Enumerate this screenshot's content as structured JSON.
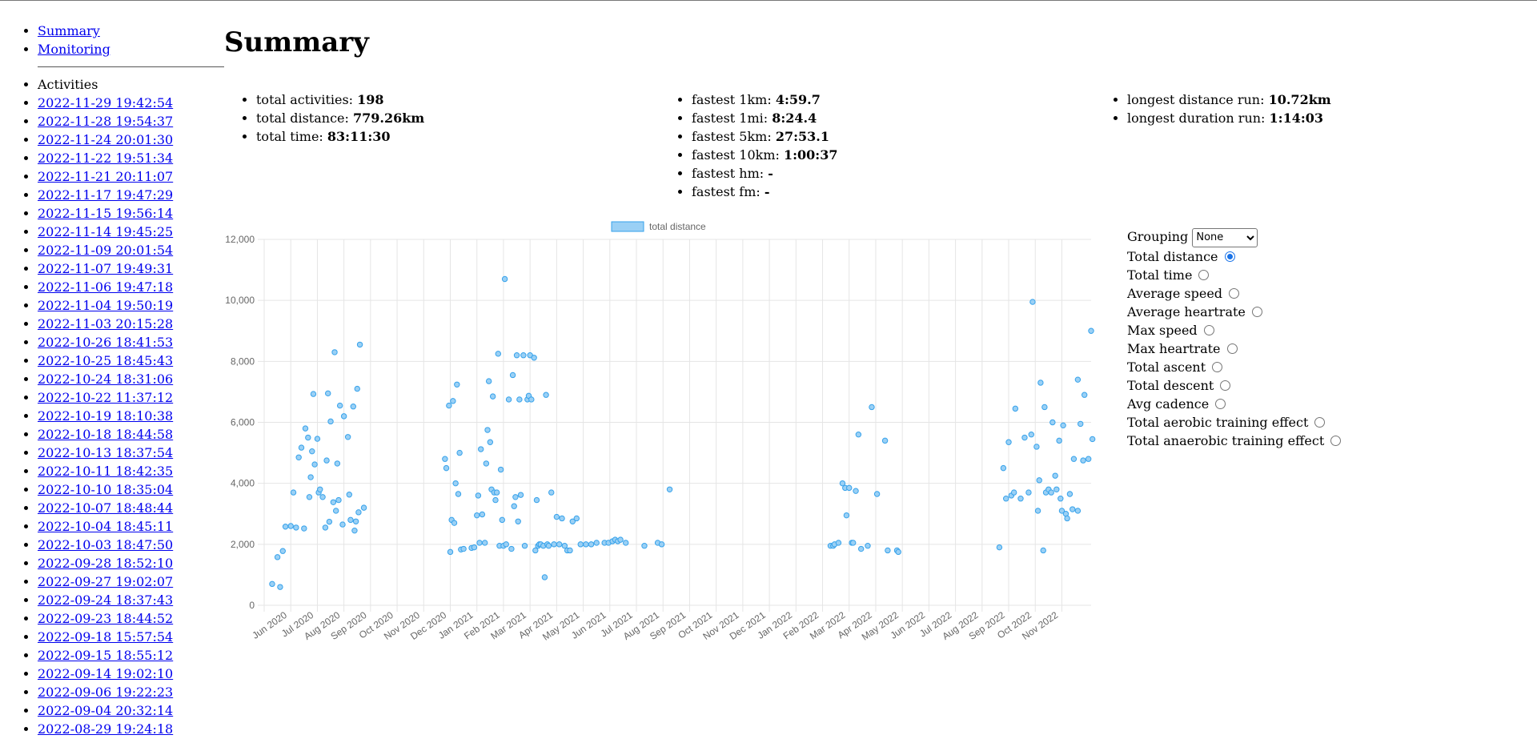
{
  "nav": {
    "summary": "Summary",
    "monitoring": "Monitoring"
  },
  "activities": {
    "heading": "Activities",
    "items": [
      "2022-11-29 19:42:54",
      "2022-11-28 19:54:37",
      "2022-11-24 20:01:30",
      "2022-11-22 19:51:34",
      "2022-11-21 20:11:07",
      "2022-11-17 19:47:29",
      "2022-11-15 19:56:14",
      "2022-11-14 19:45:25",
      "2022-11-09 20:01:54",
      "2022-11-07 19:49:31",
      "2022-11-06 19:47:18",
      "2022-11-04 19:50:19",
      "2022-11-03 20:15:28",
      "2022-10-26 18:41:53",
      "2022-10-25 18:45:43",
      "2022-10-24 18:31:06",
      "2022-10-22 11:37:12",
      "2022-10-19 18:10:38",
      "2022-10-18 18:44:58",
      "2022-10-13 18:37:54",
      "2022-10-11 18:42:35",
      "2022-10-10 18:35:04",
      "2022-10-07 18:48:44",
      "2022-10-04 18:45:11",
      "2022-10-03 18:47:50",
      "2022-09-28 18:52:10",
      "2022-09-27 19:02:07",
      "2022-09-24 18:37:43",
      "2022-09-23 18:44:52",
      "2022-09-18 15:57:54",
      "2022-09-15 18:55:12",
      "2022-09-14 19:02:10",
      "2022-09-06 19:22:23",
      "2022-09-04 20:32:14",
      "2022-08-29 19:24:18"
    ]
  },
  "page": {
    "title": "Summary"
  },
  "stats": {
    "col1": [
      {
        "label": "total activities: ",
        "value": "198"
      },
      {
        "label": "total distance: ",
        "value": "779.26km"
      },
      {
        "label": "total time: ",
        "value": "83:11:30"
      }
    ],
    "col2": [
      {
        "label": "fastest 1km: ",
        "value": "4:59.7"
      },
      {
        "label": "fastest 1mi: ",
        "value": "8:24.4"
      },
      {
        "label": "fastest 5km: ",
        "value": "27:53.1"
      },
      {
        "label": "fastest 10km: ",
        "value": "1:00:37"
      },
      {
        "label": "fastest hm: ",
        "value": "-"
      },
      {
        "label": "fastest fm: ",
        "value": "-"
      }
    ],
    "col3": [
      {
        "label": "longest distance run: ",
        "value": "10.72km"
      },
      {
        "label": "longest duration run: ",
        "value": "1:14:03"
      }
    ]
  },
  "controls": {
    "grouping_label": "Grouping",
    "grouping_value": "None",
    "options": [
      {
        "label": "Total distance",
        "checked": true
      },
      {
        "label": "Total time",
        "checked": false
      },
      {
        "label": "Average speed",
        "checked": false
      },
      {
        "label": "Average heartrate",
        "checked": false
      },
      {
        "label": "Max speed",
        "checked": false
      },
      {
        "label": "Max heartrate",
        "checked": false
      },
      {
        "label": "Total ascent",
        "checked": false
      },
      {
        "label": "Total descent",
        "checked": false
      },
      {
        "label": "Avg cadence",
        "checked": false
      },
      {
        "label": "Total aerobic training effect",
        "checked": false
      },
      {
        "label": "Total anaerobic training effect",
        "checked": false
      }
    ]
  },
  "colors": {
    "point_fill": "#9ad0f5",
    "point_stroke": "#36a2eb",
    "grid": "#e5e5e5",
    "tick": "#666666"
  },
  "chart_data": {
    "type": "scatter",
    "legend": "total distance",
    "legend_position": "top",
    "grid": true,
    "ylim": [
      0,
      12000
    ],
    "yticks": [
      "0",
      "2,000",
      "4,000",
      "6,000",
      "8,000",
      "10,000",
      "12,000"
    ],
    "xlabels": [
      "Jun 2020",
      "Jul 2020",
      "Aug 2020",
      "Sep 2020",
      "Oct 2020",
      "Nov 2020",
      "Dec 2020",
      "Jan 2021",
      "Feb 2021",
      "Mar 2021",
      "Apr 2021",
      "May 2021",
      "Jun 2021",
      "Jul 2021",
      "Aug 2021",
      "Sep 2021",
      "Oct 2021",
      "Nov 2021",
      "Dec 2021",
      "Jan 2022",
      "Feb 2022",
      "Mar 2022",
      "Apr 2022",
      "May 2022",
      "Jun 2022",
      "Jul 2022",
      "Aug 2022",
      "Sep 2022",
      "Oct 2022",
      "Nov 2022"
    ],
    "points": [
      [
        0.0,
        700
      ],
      [
        0.2,
        1580
      ],
      [
        0.3,
        600
      ],
      [
        0.4,
        1780
      ],
      [
        0.5,
        2580
      ],
      [
        0.7,
        2600
      ],
      [
        0.8,
        3700
      ],
      [
        0.9,
        2550
      ],
      [
        1.0,
        4850
      ],
      [
        1.1,
        5170
      ],
      [
        1.2,
        2520
      ],
      [
        1.25,
        5800
      ],
      [
        1.35,
        5500
      ],
      [
        1.4,
        3550
      ],
      [
        1.45,
        4200
      ],
      [
        1.5,
        5050
      ],
      [
        1.55,
        6930
      ],
      [
        1.6,
        4620
      ],
      [
        1.7,
        5460
      ],
      [
        1.75,
        3700
      ],
      [
        1.8,
        3800
      ],
      [
        1.9,
        3550
      ],
      [
        2.0,
        2550
      ],
      [
        2.05,
        4750
      ],
      [
        2.1,
        6950
      ],
      [
        2.15,
        2740
      ],
      [
        2.2,
        6030
      ],
      [
        2.3,
        3380
      ],
      [
        2.35,
        8300
      ],
      [
        2.4,
        3100
      ],
      [
        2.45,
        4650
      ],
      [
        2.5,
        3450
      ],
      [
        2.55,
        6550
      ],
      [
        2.65,
        2650
      ],
      [
        2.7,
        6200
      ],
      [
        2.85,
        5520
      ],
      [
        2.9,
        3630
      ],
      [
        2.95,
        2800
      ],
      [
        3.05,
        6520
      ],
      [
        3.1,
        2450
      ],
      [
        3.15,
        2750
      ],
      [
        3.2,
        7100
      ],
      [
        3.25,
        3050
      ],
      [
        3.3,
        8550
      ],
      [
        3.45,
        3200
      ],
      [
        6.5,
        4800
      ],
      [
        6.55,
        4500
      ],
      [
        6.65,
        6550
      ],
      [
        6.7,
        1750
      ],
      [
        6.75,
        2800
      ],
      [
        6.8,
        6700
      ],
      [
        6.85,
        2700
      ],
      [
        6.9,
        4000
      ],
      [
        6.95,
        7240
      ],
      [
        7.0,
        3650
      ],
      [
        7.05,
        5000
      ],
      [
        7.1,
        1830
      ],
      [
        7.2,
        1850
      ],
      [
        7.5,
        1880
      ],
      [
        7.6,
        1900
      ],
      [
        7.7,
        2950
      ],
      [
        7.75,
        3600
      ],
      [
        7.8,
        2050
      ],
      [
        7.85,
        5120
      ],
      [
        7.9,
        2980
      ],
      [
        8.0,
        2050
      ],
      [
        8.05,
        4650
      ],
      [
        8.1,
        5750
      ],
      [
        8.15,
        7350
      ],
      [
        8.2,
        5350
      ],
      [
        8.25,
        3800
      ],
      [
        8.3,
        6850
      ],
      [
        8.35,
        3700
      ],
      [
        8.4,
        3450
      ],
      [
        8.45,
        3700
      ],
      [
        8.5,
        8250
      ],
      [
        8.55,
        1950
      ],
      [
        8.6,
        4450
      ],
      [
        8.65,
        2800
      ],
      [
        8.7,
        1950
      ],
      [
        8.75,
        10700
      ],
      [
        8.8,
        2000
      ],
      [
        8.9,
        6750
      ],
      [
        9.0,
        1850
      ],
      [
        9.05,
        7550
      ],
      [
        9.1,
        3250
      ],
      [
        9.15,
        3550
      ],
      [
        9.2,
        8200
      ],
      [
        9.25,
        2750
      ],
      [
        9.3,
        6750
      ],
      [
        9.35,
        3620
      ],
      [
        9.45,
        8200
      ],
      [
        9.5,
        1950
      ],
      [
        9.6,
        6750
      ],
      [
        9.65,
        6870
      ],
      [
        9.7,
        8200
      ],
      [
        9.75,
        6750
      ],
      [
        9.85,
        8120
      ],
      [
        9.9,
        1800
      ],
      [
        9.95,
        3450
      ],
      [
        10.0,
        1950
      ],
      [
        10.05,
        2000
      ],
      [
        10.1,
        2000
      ],
      [
        10.2,
        1950
      ],
      [
        10.25,
        920
      ],
      [
        10.3,
        6900
      ],
      [
        10.35,
        2000
      ],
      [
        10.4,
        1950
      ],
      [
        10.5,
        3700
      ],
      [
        10.6,
        2000
      ],
      [
        10.7,
        2900
      ],
      [
        10.8,
        2000
      ],
      [
        10.9,
        2850
      ],
      [
        11.0,
        1950
      ],
      [
        11.1,
        1800
      ],
      [
        11.2,
        1800
      ],
      [
        11.3,
        2750
      ],
      [
        11.45,
        2850
      ],
      [
        11.6,
        2000
      ],
      [
        11.8,
        2000
      ],
      [
        12.0,
        2000
      ],
      [
        12.2,
        2050
      ],
      [
        12.5,
        2050
      ],
      [
        12.65,
        2050
      ],
      [
        12.8,
        2100
      ],
      [
        12.9,
        2150
      ],
      [
        13.0,
        2100
      ],
      [
        13.1,
        2150
      ],
      [
        13.3,
        2050
      ],
      [
        14.0,
        1950
      ],
      [
        14.5,
        2050
      ],
      [
        14.65,
        2000
      ],
      [
        14.95,
        3800
      ],
      [
        21.0,
        1950
      ],
      [
        21.1,
        1950
      ],
      [
        21.15,
        2000
      ],
      [
        21.3,
        2050
      ],
      [
        21.45,
        4000
      ],
      [
        21.55,
        3850
      ],
      [
        21.6,
        2950
      ],
      [
        21.7,
        3850
      ],
      [
        21.8,
        2050
      ],
      [
        21.85,
        2050
      ],
      [
        21.95,
        3750
      ],
      [
        22.05,
        5600
      ],
      [
        22.15,
        1850
      ],
      [
        22.4,
        1950
      ],
      [
        22.55,
        6500
      ],
      [
        22.75,
        3650
      ],
      [
        23.05,
        5400
      ],
      [
        23.15,
        1800
      ],
      [
        23.5,
        1800
      ],
      [
        23.55,
        1750
      ],
      [
        27.35,
        1900
      ],
      [
        27.5,
        4500
      ],
      [
        27.6,
        3500
      ],
      [
        27.7,
        5350
      ],
      [
        27.8,
        3600
      ],
      [
        27.9,
        3700
      ],
      [
        27.95,
        6450
      ],
      [
        28.15,
        3500
      ],
      [
        28.3,
        5500
      ],
      [
        28.45,
        3700
      ],
      [
        28.55,
        5600
      ],
      [
        28.6,
        9950
      ],
      [
        28.75,
        5200
      ],
      [
        28.8,
        3100
      ],
      [
        28.85,
        4100
      ],
      [
        28.9,
        7300
      ],
      [
        29.0,
        1800
      ],
      [
        29.05,
        6500
      ],
      [
        29.1,
        3700
      ],
      [
        29.2,
        3800
      ],
      [
        29.3,
        3700
      ],
      [
        29.35,
        6000
      ],
      [
        29.45,
        4250
      ],
      [
        29.5,
        3800
      ],
      [
        29.6,
        5400
      ],
      [
        29.65,
        3500
      ],
      [
        29.7,
        3100
      ],
      [
        29.75,
        5900
      ],
      [
        29.85,
        3000
      ],
      [
        29.9,
        2850
      ],
      [
        30.0,
        3650
      ],
      [
        30.1,
        3150
      ],
      [
        30.15,
        4800
      ],
      [
        30.3,
        3100
      ],
      [
        30.4,
        5950
      ],
      [
        30.5,
        4750
      ],
      [
        30.55,
        6900
      ],
      [
        30.7,
        4800
      ],
      [
        30.8,
        9000
      ],
      [
        30.85,
        5450
      ],
      [
        30.3,
        7400
      ]
    ]
  }
}
